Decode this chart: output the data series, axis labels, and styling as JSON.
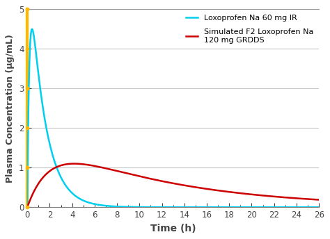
{
  "title": "",
  "xlabel": "Time (h)",
  "ylabel": "Plasma Concentration (µg/mL)",
  "xlim": [
    0,
    26
  ],
  "ylim": [
    0,
    5
  ],
  "xticks": [
    0,
    2,
    4,
    6,
    8,
    10,
    12,
    14,
    16,
    18,
    20,
    22,
    24,
    26
  ],
  "yticks": [
    0,
    1,
    2,
    3,
    4,
    5
  ],
  "cyan_label": "Loxoprofen Na 60 mg IR",
  "red_label": "Simulated F2 Loxoprofen Na\n120 mg GRDDS",
  "cyan_color": "#00CFEF",
  "red_color": "#CC0000",
  "yellow_color": "#FFB800",
  "bg_color": "#FFFFFF",
  "grid_color": "#C8C8C8",
  "spine_color": "#808080",
  "top_spine_color": "#999999"
}
